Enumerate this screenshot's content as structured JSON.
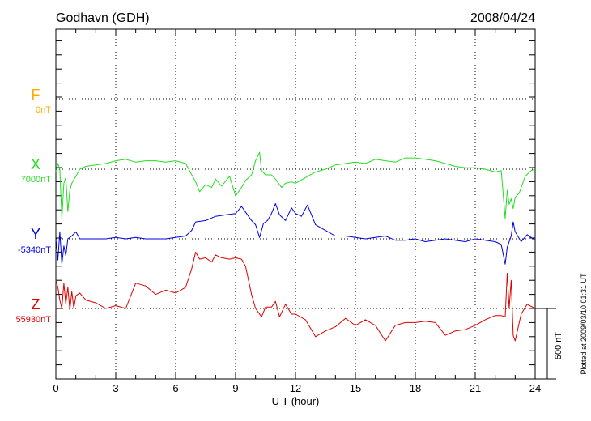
{
  "header": {
    "station": "Godhavn (GDH)",
    "date": "2008/04/24"
  },
  "stamp": "Plotted at 2009/03/10 01:31 UT",
  "colors": {
    "F": "#ffaa00",
    "X": "#22dd22",
    "Y": "#0000dd",
    "Z": "#dd0000",
    "axis": "#000000"
  },
  "chart_data": {
    "type": "line",
    "xlabel": "U T (hour)",
    "xlim": [
      0,
      24
    ],
    "xticks": [
      0,
      3,
      6,
      9,
      12,
      15,
      18,
      21,
      24
    ],
    "scale_bar": {
      "label": "500 nT",
      "value_nT": 500
    },
    "components": [
      {
        "name": "F",
        "baseline_label": "0nT",
        "values": []
      },
      {
        "name": "X",
        "baseline_label": "7000nT"
      },
      {
        "name": "Y",
        "baseline_label": "-5340nT"
      },
      {
        "name": "Z",
        "baseline_label": "55930nT"
      }
    ],
    "series": [
      {
        "name": "X",
        "x": [
          0,
          0.1,
          0.2,
          0.3,
          0.4,
          0.5,
          0.6,
          0.7,
          0.8,
          1.0,
          1.2,
          1.5,
          2.0,
          2.5,
          3.0,
          3.5,
          4.0,
          4.5,
          5.0,
          5.5,
          6.0,
          6.5,
          7.0,
          7.2,
          7.5,
          7.8,
          8.0,
          8.3,
          8.7,
          9.0,
          9.3,
          9.5,
          9.8,
          10.0,
          10.2,
          10.3,
          10.5,
          10.8,
          11.0,
          11.3,
          11.5,
          11.8,
          12.0,
          12.5,
          13.0,
          13.5,
          14.0,
          14.5,
          15.0,
          15.5,
          16.0,
          16.5,
          17.0,
          17.5,
          18.0,
          18.5,
          19.0,
          19.5,
          20.0,
          20.5,
          21.0,
          21.5,
          22.0,
          22.3,
          22.5,
          22.6,
          22.7,
          22.8,
          22.9,
          23.0,
          23.2,
          23.5,
          23.8,
          24.0
        ],
        "values": [
          -20,
          40,
          0,
          -350,
          -100,
          -60,
          -300,
          -150,
          -100,
          -50,
          0,
          20,
          30,
          40,
          60,
          70,
          50,
          60,
          60,
          50,
          60,
          40,
          -90,
          -160,
          -110,
          -130,
          -70,
          -120,
          -50,
          -190,
          -130,
          -80,
          -40,
          60,
          120,
          -10,
          -40,
          -40,
          -70,
          -130,
          -100,
          -90,
          -100,
          -60,
          -20,
          0,
          30,
          40,
          50,
          40,
          70,
          60,
          50,
          80,
          80,
          70,
          60,
          40,
          20,
          10,
          10,
          0,
          -20,
          -10,
          -350,
          -150,
          -250,
          -210,
          -280,
          -200,
          -170,
          -50,
          -10,
          0
        ]
      },
      {
        "name": "Y",
        "x": [
          0,
          0.1,
          0.2,
          0.3,
          0.4,
          0.5,
          0.6,
          0.8,
          1.0,
          1.2,
          1.5,
          2.0,
          2.5,
          3.0,
          3.5,
          4.0,
          4.5,
          5.0,
          5.5,
          6.0,
          6.5,
          6.8,
          7.0,
          7.5,
          8.0,
          8.5,
          9.0,
          9.3,
          9.5,
          9.8,
          10.0,
          10.2,
          10.4,
          10.6,
          10.8,
          11.0,
          11.2,
          11.5,
          11.8,
          12.0,
          12.3,
          12.6,
          13.0,
          13.5,
          14.0,
          14.5,
          15.0,
          15.5,
          16.0,
          16.5,
          17.0,
          17.5,
          18.0,
          18.5,
          19.0,
          19.5,
          20.0,
          20.5,
          21.0,
          21.5,
          22.0,
          22.3,
          22.5,
          22.6,
          22.8,
          22.9,
          23.0,
          23.3,
          23.6,
          24.0
        ],
        "values": [
          0,
          -150,
          50,
          -180,
          -50,
          -120,
          0,
          20,
          50,
          0,
          0,
          0,
          0,
          10,
          0,
          10,
          0,
          0,
          0,
          10,
          20,
          60,
          120,
          130,
          160,
          170,
          180,
          230,
          190,
          130,
          100,
          10,
          110,
          130,
          180,
          250,
          170,
          130,
          220,
          180,
          160,
          240,
          100,
          60,
          20,
          20,
          10,
          0,
          10,
          20,
          -10,
          -10,
          0,
          -20,
          -10,
          0,
          -10,
          -20,
          0,
          -10,
          -20,
          -40,
          -180,
          -60,
          20,
          120,
          50,
          -20,
          30,
          -10
        ]
      },
      {
        "name": "Z",
        "x": [
          0,
          0.1,
          0.2,
          0.3,
          0.4,
          0.5,
          0.6,
          0.7,
          0.8,
          0.9,
          1.0,
          1.2,
          1.5,
          2.0,
          2.5,
          3.0,
          3.5,
          4.0,
          4.5,
          5.0,
          5.5,
          6.0,
          6.5,
          6.8,
          7.0,
          7.2,
          7.5,
          7.8,
          8.0,
          8.3,
          8.7,
          9.0,
          9.3,
          9.5,
          9.8,
          10.0,
          10.3,
          10.5,
          10.8,
          11.0,
          11.2,
          11.5,
          11.8,
          12.0,
          12.5,
          13.0,
          13.5,
          14.0,
          14.5,
          15.0,
          15.5,
          16.0,
          16.5,
          17.0,
          17.5,
          18.0,
          18.5,
          19.0,
          19.5,
          20.0,
          20.5,
          21.0,
          21.5,
          22.0,
          22.3,
          22.5,
          22.6,
          22.7,
          22.8,
          22.9,
          23.0,
          23.3,
          23.6,
          24.0
        ],
        "values": [
          200,
          150,
          60,
          0,
          180,
          30,
          150,
          -10,
          120,
          0,
          90,
          110,
          60,
          40,
          0,
          20,
          0,
          180,
          160,
          100,
          130,
          110,
          150,
          280,
          400,
          350,
          360,
          330,
          380,
          360,
          350,
          360,
          350,
          300,
          100,
          0,
          -60,
          10,
          10,
          50,
          -60,
          30,
          -40,
          -40,
          -80,
          -200,
          -160,
          -130,
          -70,
          -120,
          -80,
          -120,
          -230,
          -120,
          -100,
          -100,
          -90,
          -100,
          -190,
          -160,
          -150,
          -120,
          -80,
          -50,
          -50,
          -60,
          250,
          0,
          200,
          -190,
          -230,
          -40,
          30,
          0
        ]
      }
    ]
  }
}
